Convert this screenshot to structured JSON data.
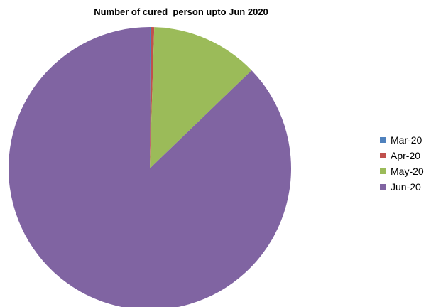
{
  "chart_data": {
    "type": "pie",
    "title": "Number of cured  person upto Jun 2020",
    "categories": [
      "Mar-20",
      "Apr-20",
      "May-20",
      "Jun-20"
    ],
    "values": [
      0.1,
      0.4,
      12.3,
      87.2
    ],
    "value_unit": "percent of total",
    "colors": [
      "#4F81BD",
      "#C0504D",
      "#9BBB59",
      "#8064A2"
    ],
    "legend_position": "right",
    "slice_order": "clockwise from top"
  }
}
